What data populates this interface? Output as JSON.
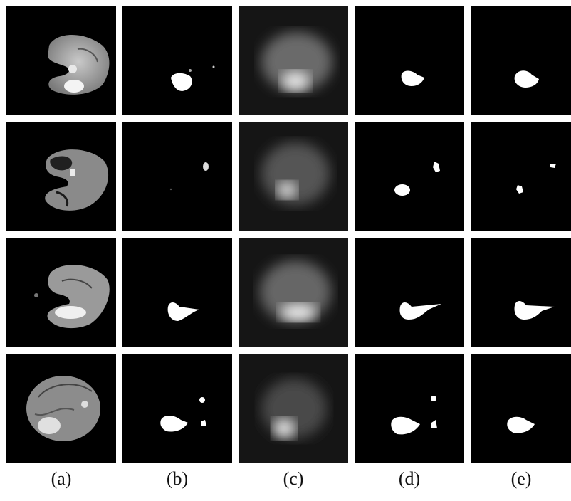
{
  "figure": {
    "column_labels": [
      "(a)",
      "(b)",
      "(c)",
      "(d)",
      "(e)"
    ],
    "rows": 4,
    "columns": 5
  },
  "panels": [
    {
      "row": 0,
      "col": 0,
      "kind": "mri-flair-slice"
    },
    {
      "row": 0,
      "col": 1,
      "kind": "segmentation-output"
    },
    {
      "row": 0,
      "col": 2,
      "kind": "blurred-probability-map"
    },
    {
      "row": 0,
      "col": 3,
      "kind": "binary-mask"
    },
    {
      "row": 0,
      "col": 4,
      "kind": "binary-mask"
    }
  ],
  "colors": {
    "background": "#000000",
    "foreground": "#ffffff"
  }
}
